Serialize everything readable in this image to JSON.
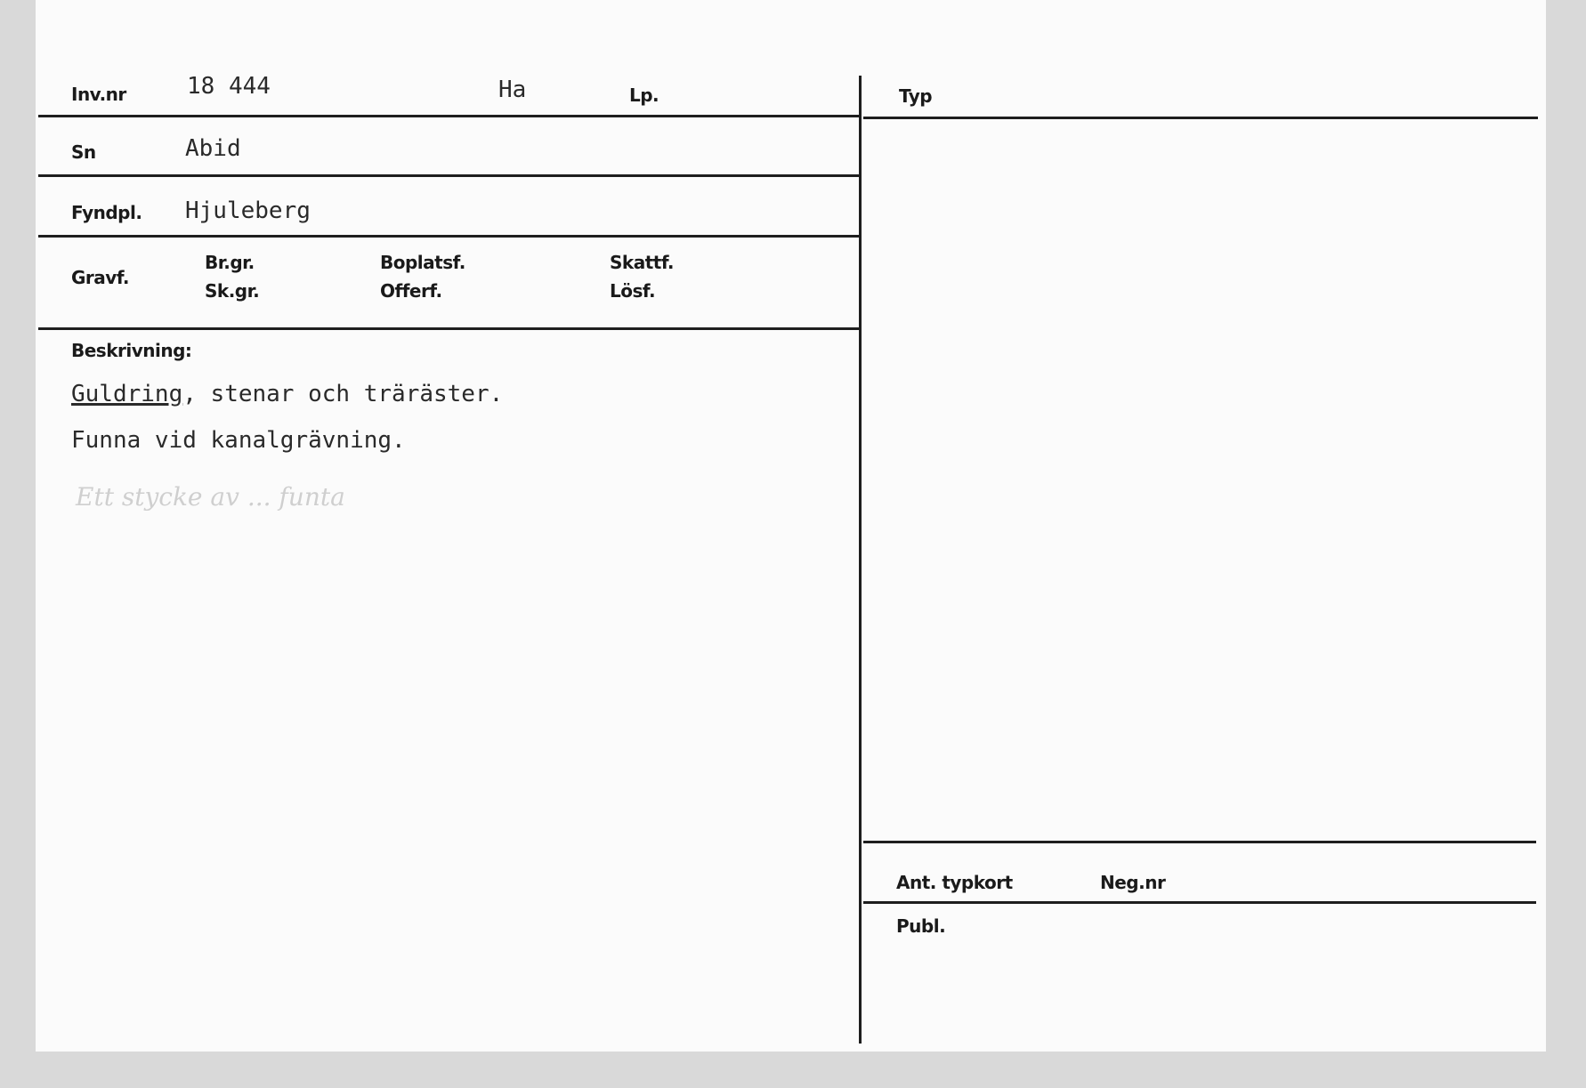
{
  "left": {
    "inv_nr_label": "Inv.nr",
    "inv_nr_value": "18 444",
    "ha_value": "Ha",
    "lp_label": "Lp.",
    "sn_label": "Sn",
    "sn_value": "Abid",
    "fyndpl_label": "Fyndpl.",
    "fyndpl_value": "Hjuleberg",
    "gravf_label": "Gravf.",
    "br_gr_label": "Br.gr.",
    "sk_gr_label": "Sk.gr.",
    "boplatsf_label": "Boplatsf.",
    "offerf_label": "Offerf.",
    "skattf_label": "Skattf.",
    "losf_label": "Lösf.",
    "beskrivning_label": "Beskrivning:",
    "desc_underlined": "Guldring",
    "desc_line1_rest": ", stenar och träräster.",
    "desc_line2": "Funna vid kanalgrävning.",
    "handwritten_note": "Ett stycke av ... funta"
  },
  "right": {
    "typ_label": "Typ",
    "ant_typkort_label": "Ant. typkort",
    "neg_nr_label": "Neg.nr",
    "publ_label": "Publ."
  }
}
